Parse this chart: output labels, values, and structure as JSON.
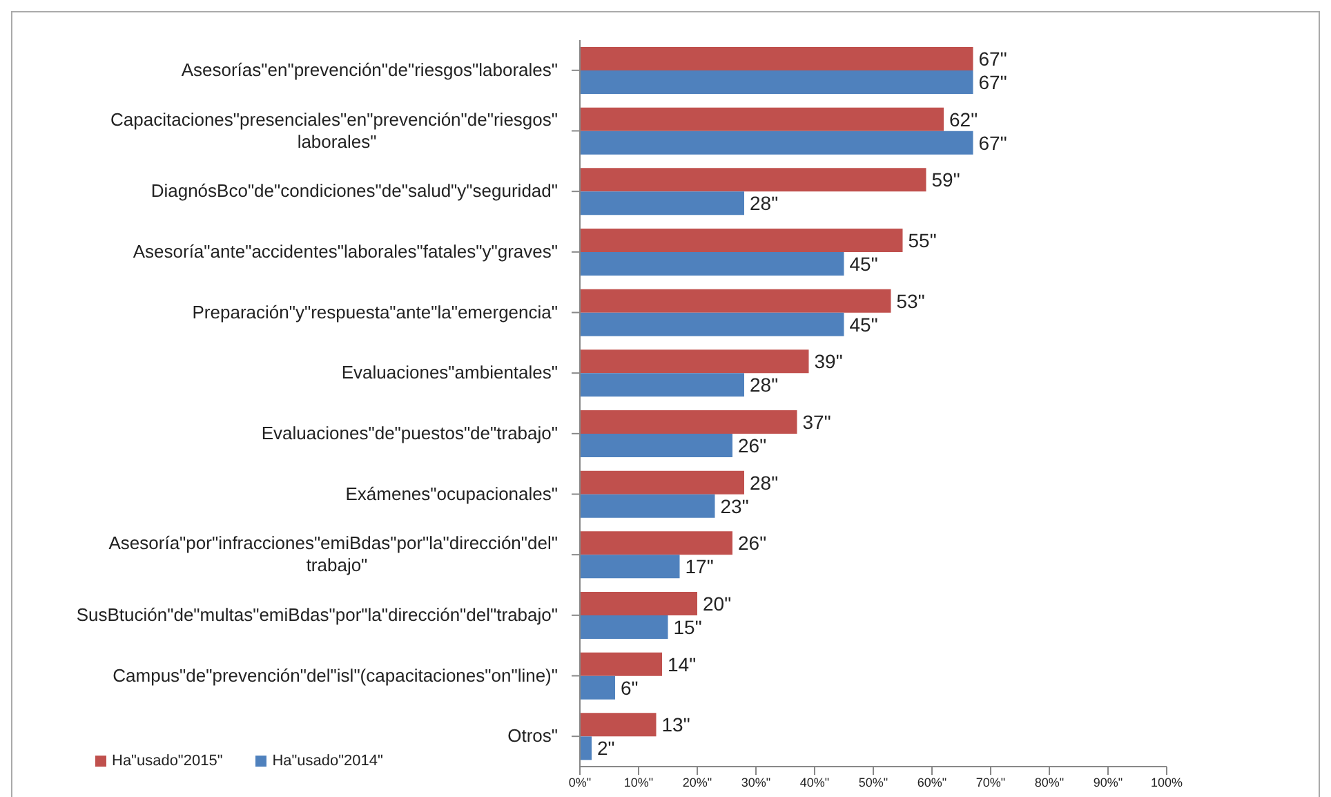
{
  "chart_data": {
    "type": "bar",
    "orientation": "horizontal",
    "categories": [
      "Asesorías\"en\"prevención\"de\"riesgos\"laborales\"",
      "Capacitaciones\"presenciales\"en\"prevención\"de\"riesgos\"laborales\"",
      "DiagnósBco\"de\"condiciones\"de\"salud\"y\"seguridad\"",
      "Asesoría\"ante\"accidentes\"laborales\"fatales\"y\"graves\"",
      "Preparación\"y\"respuesta\"ante\"la\"emergencia\"",
      "Evaluaciones\"ambientales\"",
      "Evaluaciones\"de\"puestos\"de\"trabajo\"",
      "Exámenes\"ocupacionales\"",
      "Asesoría\"por\"infracciones\"emiBdas\"por\"la\"dirección\"del\"trabajo\"",
      "SusBtución\"de\"multas\"emiBdas\"por\"la\"dirección\"del\"trabajo\"",
      "Campus\"de\"prevención\"del\"isl\"(capacitaciones\"on\"line)\"",
      "Otros\""
    ],
    "series": [
      {
        "name": "Ha\"usado\"2015\"",
        "color": "#c0504d",
        "values": [
          67,
          62,
          59,
          55,
          53,
          39,
          37,
          28,
          26,
          20,
          14,
          13
        ],
        "value_labels": [
          "67\"",
          "62\"",
          "59\"",
          "55\"",
          "53\"",
          "39\"",
          "37\"",
          "28\"",
          "26\"",
          "20\"",
          "14\"",
          "13\""
        ]
      },
      {
        "name": "Ha\"usado\"2014\"",
        "color": "#4f81bd",
        "values": [
          67,
          67,
          28,
          45,
          45,
          28,
          26,
          23,
          17,
          15,
          6,
          2
        ],
        "value_labels": [
          "67\"",
          "67\"",
          "28\"",
          "45\"",
          "45\"",
          "28\"",
          "26\"",
          "23\"",
          "17\"",
          "15\"",
          "6\"",
          "2\""
        ]
      }
    ],
    "xlim": [
      0,
      100
    ],
    "xticks": [
      {
        "value": 0,
        "label": "0%\""
      },
      {
        "value": 10,
        "label": "10%\""
      },
      {
        "value": 20,
        "label": "20%\""
      },
      {
        "value": 30,
        "label": "30%\""
      },
      {
        "value": 40,
        "label": "40%\""
      },
      {
        "value": 50,
        "label": "50%\""
      },
      {
        "value": 60,
        "label": "60%\""
      },
      {
        "value": 70,
        "label": "70%\""
      },
      {
        "value": 80,
        "label": "80%\""
      },
      {
        "value": 90,
        "label": "90%\""
      },
      {
        "value": 100,
        "label": "100%"
      }
    ],
    "grid": false,
    "legend": "bottom left"
  }
}
